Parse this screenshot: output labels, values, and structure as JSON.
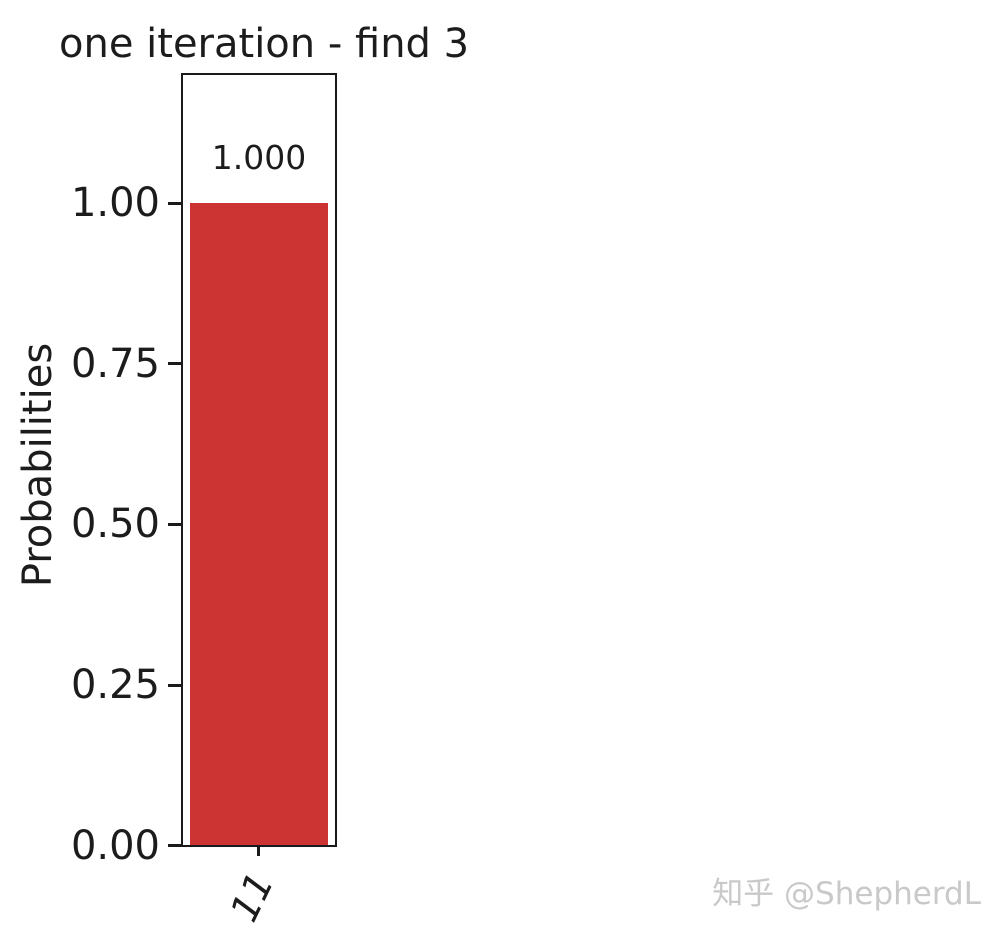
{
  "figure": {
    "watermark": "知乎 @ShepherdL"
  },
  "chart_data": {
    "type": "bar",
    "title": "one iteration - find 3",
    "xlabel": "",
    "ylabel": "Probabilities",
    "categories": [
      "11"
    ],
    "values": [
      1.0
    ],
    "bar_labels": [
      "1.000"
    ],
    "ylim": [
      0,
      1.2
    ],
    "yticks": {
      "values": [
        0.0,
        0.25,
        0.5,
        0.75,
        1.0
      ],
      "labels": [
        "0.00",
        "0.25",
        "0.50",
        "0.75",
        "1.00"
      ]
    },
    "bar_color": "#cc3333",
    "axis_color": "#1a1a1a",
    "grid": "off",
    "legend": "none"
  }
}
